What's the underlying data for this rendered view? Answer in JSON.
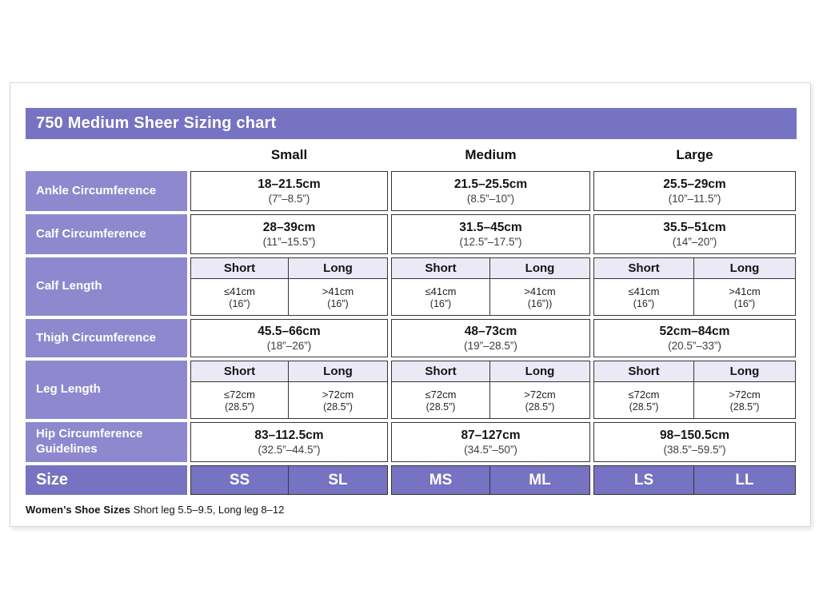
{
  "title": "750 Medium Sheer Sizing chart",
  "columns": [
    "Small",
    "Medium",
    "Large"
  ],
  "sub_columns": [
    "Short",
    "Long"
  ],
  "rows": {
    "ankle": {
      "label": "Ankle Circumference",
      "small": {
        "cm": "18–21.5cm",
        "in": "(7”–8.5”)"
      },
      "medium": {
        "cm": "21.5–25.5cm",
        "in": "(8.5”–10”)"
      },
      "large": {
        "cm": "25.5–29cm",
        "in": "(10”–11.5”)"
      }
    },
    "calf_circumference": {
      "label": "Calf Circumference",
      "small": {
        "cm": "28–39cm",
        "in": "(11”–15.5”)"
      },
      "medium": {
        "cm": "31.5–45cm",
        "in": "(12.5”–17.5”)"
      },
      "large": {
        "cm": "35.5–51cm",
        "in": "(14”–20”)"
      }
    },
    "calf_length": {
      "label": "Calf Length",
      "small_short": {
        "cm": "≤41cm",
        "in": "(16”)"
      },
      "small_long": {
        "cm": ">41cm",
        "in": "(16”)"
      },
      "medium_short": {
        "cm": "≤41cm",
        "in": "(16”)"
      },
      "medium_long": {
        "cm": ">41cm",
        "in": "(16”))"
      },
      "large_short": {
        "cm": "≤41cm",
        "in": "(16”)"
      },
      "large_long": {
        "cm": ">41cm",
        "in": "(16”)"
      }
    },
    "thigh": {
      "label": "Thigh Circumference",
      "small": {
        "cm": "45.5–66cm",
        "in": "(18”–26”)"
      },
      "medium": {
        "cm": "48–73cm",
        "in": "(19”–28.5”)"
      },
      "large": {
        "cm": "52cm–84cm",
        "in": "(20.5”–33”)"
      }
    },
    "leg_length": {
      "label": "Leg Length",
      "small_short": {
        "cm": "≤72cm",
        "in": "(28.5”)"
      },
      "small_long": {
        "cm": ">72cm",
        "in": "(28.5”)"
      },
      "medium_short": {
        "cm": "≤72cm",
        "in": "(28.5”)"
      },
      "medium_long": {
        "cm": ">72cm",
        "in": "(28.5”)"
      },
      "large_short": {
        "cm": "≤72cm",
        "in": "(28.5”)"
      },
      "large_long": {
        "cm": ">72cm",
        "in": "(28.5”)"
      }
    },
    "hip": {
      "label": "Hip Circumference Guidelines",
      "small": {
        "cm": "83–112.5cm",
        "in": "(32.5”–44.5”)"
      },
      "medium": {
        "cm": "87–127cm",
        "in": "(34.5”–50”)"
      },
      "large": {
        "cm": "98–150.5cm",
        "in": "(38.5”–59.5”)"
      }
    },
    "size": {
      "label": "Size"
    }
  },
  "sizes": [
    "SS",
    "SL",
    "MS",
    "ML",
    "LS",
    "LL"
  ],
  "footnote": {
    "bold": "Women's Shoe Sizes",
    "rest": " Short leg 5.5–9.5, Long leg 8–12"
  },
  "colors": {
    "header_purple": "#7673c2",
    "label_purple": "#8e89ce",
    "subheader_lavender": "#eae9f5",
    "border_dark": "#36343a"
  }
}
